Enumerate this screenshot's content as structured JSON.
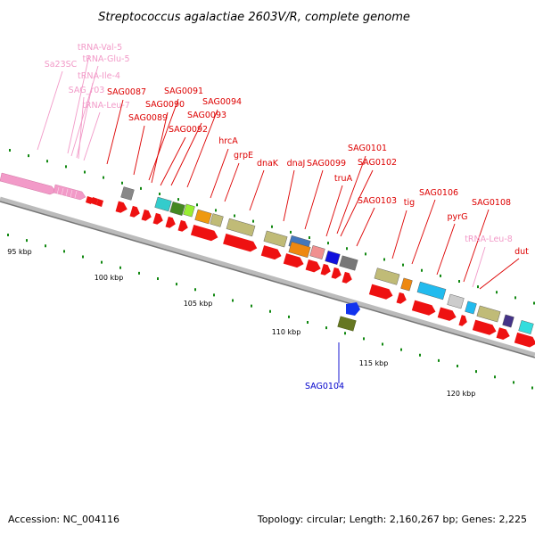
{
  "title": "Streptococcus agalactiae 2603V/R, complete genome",
  "footer": {
    "accession": "Accession: NC_004116",
    "summary": "Topology: circular; Length: 2,160,267 bp; Genes: 2,225"
  },
  "colors": {
    "gene": "#ee1111",
    "rna": "#f29ac8",
    "backbone": "#999999",
    "tick": "#118811",
    "leader_gene": "#dd0000",
    "leader_rna": "#f29ac8",
    "leader_special": "#0000cc"
  },
  "kbp_labels": [
    "95 kbp",
    "100 kbp",
    "105 kbp",
    "110 kbp",
    "115 kbp",
    "120 kbp"
  ],
  "labels": [
    {
      "text": "tRNA-Val-5",
      "kind": "rna"
    },
    {
      "text": "Sa23SC",
      "kind": "rna"
    },
    {
      "text": "tRNA-Glu-5",
      "kind": "rna"
    },
    {
      "text": "tRNA-Ile-4",
      "kind": "rna"
    },
    {
      "text": "SAG_r03",
      "kind": "rna"
    },
    {
      "text": "tRNA-Leu-7",
      "kind": "rna"
    },
    {
      "text": "SAG0087",
      "kind": "gene"
    },
    {
      "text": "SAG0089",
      "kind": "gene"
    },
    {
      "text": "SAG0091",
      "kind": "gene"
    },
    {
      "text": "SAG0090",
      "kind": "gene"
    },
    {
      "text": "SAG0094",
      "kind": "gene"
    },
    {
      "text": "SAG0093",
      "kind": "gene"
    },
    {
      "text": "SAG0092",
      "kind": "gene"
    },
    {
      "text": "hrcA",
      "kind": "gene"
    },
    {
      "text": "grpE",
      "kind": "gene"
    },
    {
      "text": "dnaK",
      "kind": "gene"
    },
    {
      "text": "dnaJ",
      "kind": "gene"
    },
    {
      "text": "SAG0099",
      "kind": "gene"
    },
    {
      "text": "SAG0101",
      "kind": "gene"
    },
    {
      "text": "SAG0102",
      "kind": "gene"
    },
    {
      "text": "truA",
      "kind": "gene"
    },
    {
      "text": "SAG0103",
      "kind": "gene"
    },
    {
      "text": "tig",
      "kind": "gene"
    },
    {
      "text": "SAG0106",
      "kind": "gene"
    },
    {
      "text": "pyrG",
      "kind": "gene"
    },
    {
      "text": "SAG0108",
      "kind": "gene"
    },
    {
      "text": "tRNA-Leu-8",
      "kind": "rna"
    },
    {
      "text": "dut",
      "kind": "gene"
    },
    {
      "text": "SAG0104",
      "kind": "special"
    }
  ],
  "functional_blocks": [
    {
      "color": "#888888"
    },
    {
      "color": "#33cccc"
    },
    {
      "color": "#448822"
    },
    {
      "color": "#99ee33"
    },
    {
      "color": "#ee9911"
    },
    {
      "color": "#c0bb77"
    },
    {
      "color": "#c0bb77"
    },
    {
      "color": "#c0bb77"
    },
    {
      "color": "#4477bb"
    },
    {
      "color": "#ee8811"
    },
    {
      "color": "#f09090"
    },
    {
      "color": "#1111dd"
    },
    {
      "color": "#777777"
    },
    {
      "color": "#c0bb77"
    },
    {
      "color": "#ee8811"
    },
    {
      "color": "#22bbee"
    },
    {
      "color": "#cccccc"
    },
    {
      "color": "#22bbee"
    },
    {
      "color": "#c0bb77"
    },
    {
      "color": "#443388"
    },
    {
      "color": "#33dddd"
    },
    {
      "color": "#667722"
    },
    {
      "color": "#1133ee"
    }
  ]
}
